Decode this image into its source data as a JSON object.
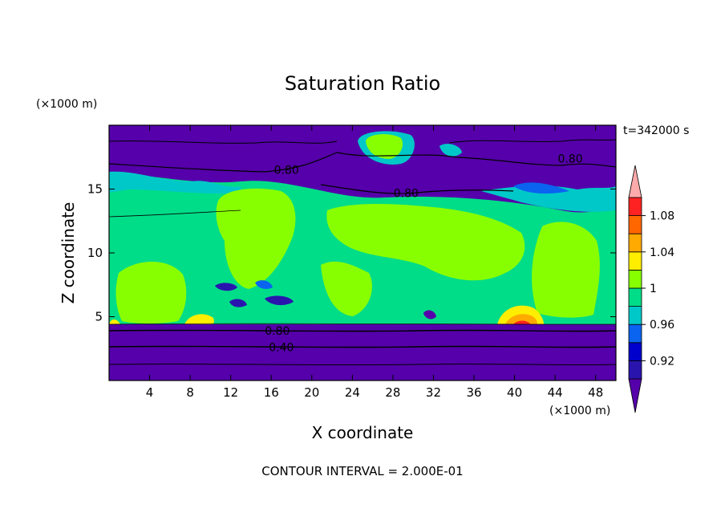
{
  "chart_data": {
    "type": "heatmap",
    "title": "Saturation Ratio",
    "xlabel": "X coordinate",
    "ylabel": "Z coordinate",
    "x_unit": "(×1000 m)",
    "y_unit": "(×1000 m)",
    "time_label": "t=342000 s",
    "footer": "CONTOUR INTERVAL = 2.000E-01",
    "xlim": [
      0,
      50
    ],
    "ylim": [
      0,
      20
    ],
    "x_ticks": [
      4,
      8,
      12,
      16,
      20,
      24,
      28,
      32,
      36,
      40,
      44,
      48
    ],
    "y_ticks": [
      5,
      10,
      15
    ],
    "contour_labels": [
      {
        "text": "0.80",
        "x": 17.5,
        "z": 16.5
      },
      {
        "text": "0.80",
        "x": 29.3,
        "z": 14.7
      },
      {
        "text": "0.80",
        "x": 45.5,
        "z": 17.4
      },
      {
        "text": "0.80",
        "x": 16.6,
        "z": 3.9
      },
      {
        "text": "0.40",
        "x": 17.0,
        "z": 2.6
      }
    ],
    "colorbar": {
      "levels": [
        0.9,
        0.92,
        0.94,
        0.96,
        0.98,
        1.0,
        1.02,
        1.04,
        1.06,
        1.08,
        1.1
      ],
      "tick_labels": [
        "0.92",
        "0.96",
        "1",
        "1.04",
        "1.08"
      ],
      "colors": [
        "#5500aa",
        "#2a14ae",
        "#0000cc",
        "#0a64f0",
        "#00c8c8",
        "#00dd88",
        "#88ff00",
        "#ffee00",
        "#ffaa00",
        "#ff6600",
        "#ff2222",
        "#ffaaaa"
      ]
    }
  }
}
